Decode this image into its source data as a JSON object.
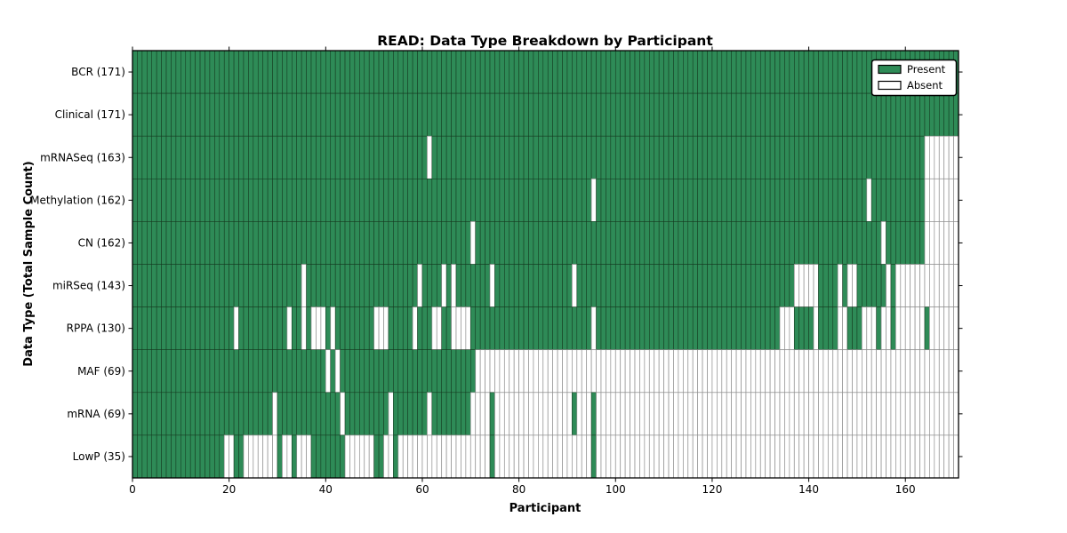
{
  "chart_data": {
    "type": "heatmap",
    "title": "READ: Data Type Breakdown by Participant",
    "xlabel": "Participant",
    "ylabel": "Data Type (Total Sample Count)",
    "n_participants": 171,
    "x_ticks": [
      0,
      20,
      40,
      60,
      80,
      100,
      120,
      140,
      160
    ],
    "xlim": [
      0,
      171
    ],
    "grid": false,
    "legend_position": "upper right",
    "present_color": "#2e8b57",
    "absent_color": "#ffffff",
    "cell_edge_present_color": "#14391f",
    "cell_edge_absent_color": "#8f8f8f",
    "legend": [
      {
        "label": "Present",
        "color": "#2e8b57"
      },
      {
        "label": "Absent",
        "color": "#ffffff"
      }
    ],
    "rows": [
      {
        "label": "BCR (171)",
        "name": "BCR",
        "total": 171,
        "absent_ranges": []
      },
      {
        "label": "Clinical (171)",
        "name": "Clinical",
        "total": 171,
        "absent_ranges": []
      },
      {
        "label": "mRNASeq (163)",
        "name": "mRNASeq",
        "total": 163,
        "absent_ranges": [
          [
            61,
            61
          ],
          [
            164,
            170
          ]
        ]
      },
      {
        "label": "Methylation (162)",
        "name": "Methylation",
        "total": 162,
        "absent_ranges": [
          [
            95,
            95
          ],
          [
            152,
            152
          ],
          [
            164,
            170
          ]
        ]
      },
      {
        "label": "CN (162)",
        "name": "CN",
        "total": 162,
        "absent_ranges": [
          [
            70,
            70
          ],
          [
            155,
            155
          ],
          [
            164,
            170
          ]
        ]
      },
      {
        "label": "miRSeq (143)",
        "name": "miRSeq",
        "total": 143,
        "absent_ranges": [
          [
            35,
            35
          ],
          [
            59,
            59
          ],
          [
            64,
            64
          ],
          [
            66,
            66
          ],
          [
            74,
            74
          ],
          [
            91,
            91
          ],
          [
            137,
            141
          ],
          [
            146,
            146
          ],
          [
            148,
            149
          ],
          [
            156,
            156
          ],
          [
            158,
            170
          ]
        ]
      },
      {
        "label": "RPPA (130)",
        "name": "RPPA",
        "total": 130,
        "absent_ranges": [
          [
            21,
            21
          ],
          [
            32,
            32
          ],
          [
            35,
            35
          ],
          [
            37,
            39
          ],
          [
            41,
            41
          ],
          [
            50,
            52
          ],
          [
            58,
            58
          ],
          [
            62,
            63
          ],
          [
            66,
            69
          ],
          [
            95,
            95
          ],
          [
            134,
            136
          ],
          [
            141,
            141
          ],
          [
            146,
            147
          ],
          [
            151,
            153
          ],
          [
            155,
            156
          ],
          [
            158,
            163
          ],
          [
            165,
            170
          ]
        ]
      },
      {
        "label": "MAF (69)",
        "name": "MAF",
        "total": 69,
        "absent_ranges": [
          [
            40,
            40
          ],
          [
            42,
            42
          ],
          [
            71,
            170
          ]
        ]
      },
      {
        "label": "mRNA (69)",
        "name": "mRNA",
        "total": 69,
        "absent_ranges": [
          [
            29,
            29
          ],
          [
            43,
            43
          ],
          [
            53,
            53
          ],
          [
            61,
            61
          ],
          [
            70,
            73
          ],
          [
            75,
            90
          ],
          [
            92,
            94
          ],
          [
            96,
            170
          ]
        ]
      },
      {
        "label": "LowP (35)",
        "name": "LowP",
        "total": 35,
        "absent_ranges": [
          [
            19,
            20
          ],
          [
            23,
            29
          ],
          [
            31,
            32
          ],
          [
            34,
            36
          ],
          [
            44,
            49
          ],
          [
            52,
            53
          ],
          [
            55,
            73
          ],
          [
            75,
            94
          ],
          [
            96,
            170
          ]
        ]
      }
    ]
  }
}
